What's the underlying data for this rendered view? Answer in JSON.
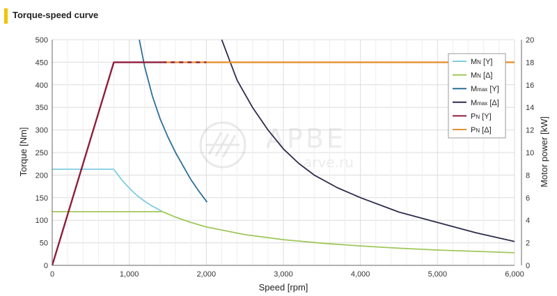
{
  "header": {
    "title": "Torque-speed curve"
  },
  "watermark": {
    "brand": "APBE",
    "site": "arve.ru"
  },
  "chart_data": {
    "type": "line",
    "xlabel": "Speed [rpm]",
    "ylabel": "Torque [Nm]",
    "y2label": "Motor power [kW]",
    "xlim": [
      0,
      6000
    ],
    "ylim": [
      0,
      500
    ],
    "y2lim": [
      0,
      20
    ],
    "xticks": [
      0,
      1000,
      2000,
      3000,
      4000,
      5000,
      6000
    ],
    "xtick_labels": [
      "0",
      "1,000",
      "2,000",
      "3,000",
      "4,000",
      "5,000",
      "6,000"
    ],
    "yticks": [
      0,
      50,
      100,
      150,
      200,
      250,
      300,
      350,
      400,
      450,
      500
    ],
    "y2ticks": [
      0,
      2,
      4,
      6,
      8,
      10,
      12,
      14,
      16,
      18,
      20
    ],
    "grid": true,
    "legend_position": "top-right",
    "series": [
      {
        "name": "MN [Y]",
        "label_main": "M",
        "label_sub": "N",
        "label_suffix": " [Y]",
        "color": "#7ecce0",
        "axis": "left",
        "x": [
          0,
          800,
          900,
          1000,
          1100,
          1200,
          1300,
          1400,
          1430
        ],
        "y": [
          213,
          213,
          190,
          171,
          155,
          142,
          131,
          122,
          119
        ]
      },
      {
        "name": "MN [Δ]",
        "label_main": "M",
        "label_sub": "N",
        "label_suffix": " [Δ]",
        "color": "#9fc75a",
        "axis": "left",
        "x": [
          0,
          1430,
          1600,
          1800,
          2000,
          2500,
          3000,
          3500,
          4000,
          4500,
          5000,
          5500,
          6000
        ],
        "y": [
          119,
          119,
          107,
          95,
          85,
          68,
          57,
          49,
          43,
          38,
          34,
          31,
          28
        ]
      },
      {
        "name": "Mmax [Y]",
        "label_main": "M",
        "label_sub": "max",
        "label_suffix": " [Y]",
        "color": "#2a6f9a",
        "axis": "left",
        "x": [
          1130,
          1200,
          1300,
          1400,
          1500,
          1600,
          1700,
          1800,
          1900,
          2010
        ],
        "y": [
          500,
          440,
          375,
          325,
          285,
          250,
          220,
          190,
          165,
          140
        ]
      },
      {
        "name": "Mmax [Δ]",
        "label_main": "M",
        "label_sub": "max",
        "label_suffix": " [Δ]",
        "color": "#2c2c4c",
        "axis": "left",
        "x": [
          2200,
          2300,
          2400,
          2600,
          2800,
          3000,
          3200,
          3400,
          3700,
          4000,
          4500,
          5000,
          5500,
          6000
        ],
        "y": [
          500,
          455,
          410,
          350,
          300,
          258,
          226,
          200,
          172,
          150,
          118,
          95,
          72,
          53
        ]
      },
      {
        "name": "PN [Y]",
        "label_main": "P",
        "label_sub": "N",
        "label_suffix": " [Y]",
        "color": "#8e1d3a",
        "axis": "right",
        "x": [
          0,
          800,
          1430
        ],
        "y": [
          0,
          18,
          18
        ]
      },
      {
        "name": "PN [Δ]",
        "label_main": "P",
        "label_sub": "N",
        "label_suffix": " [Δ]",
        "color": "#e5902f",
        "axis": "right",
        "x": [
          1430,
          2000,
          6000
        ],
        "y": [
          18,
          18,
          18
        ]
      }
    ]
  }
}
